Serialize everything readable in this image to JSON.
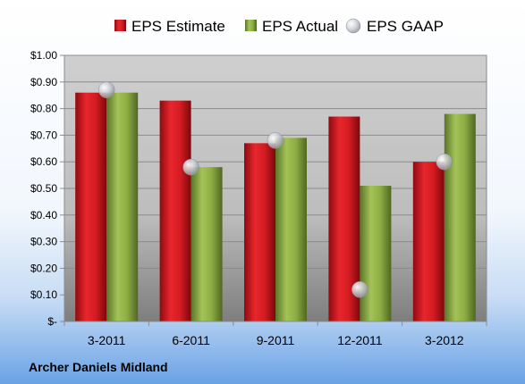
{
  "company": "Archer Daniels Midland",
  "chart_data": {
    "type": "bar",
    "categories": [
      "3-2011",
      "6-2011",
      "9-2011",
      "12-2011",
      "3-2012"
    ],
    "series": [
      {
        "name": "EPS Estimate",
        "kind": "bar",
        "color": "#c0141a",
        "values": [
          0.86,
          0.83,
          0.67,
          0.77,
          0.6
        ]
      },
      {
        "name": "EPS Actual",
        "kind": "bar",
        "color": "#7a9a35",
        "values": [
          0.86,
          0.58,
          0.69,
          0.51,
          0.78
        ]
      },
      {
        "name": "EPS GAAP",
        "kind": "marker",
        "color": "#b8bcc4",
        "values": [
          0.87,
          0.58,
          0.68,
          0.12,
          0.6
        ]
      }
    ],
    "y_ticks": [
      "$-",
      "$0.10",
      "$0.20",
      "$0.30",
      "$0.40",
      "$0.50",
      "$0.60",
      "$0.70",
      "$0.80",
      "$0.90",
      "$1.00"
    ],
    "ylim": [
      0,
      1.0
    ],
    "grid": true,
    "legend": "top"
  }
}
